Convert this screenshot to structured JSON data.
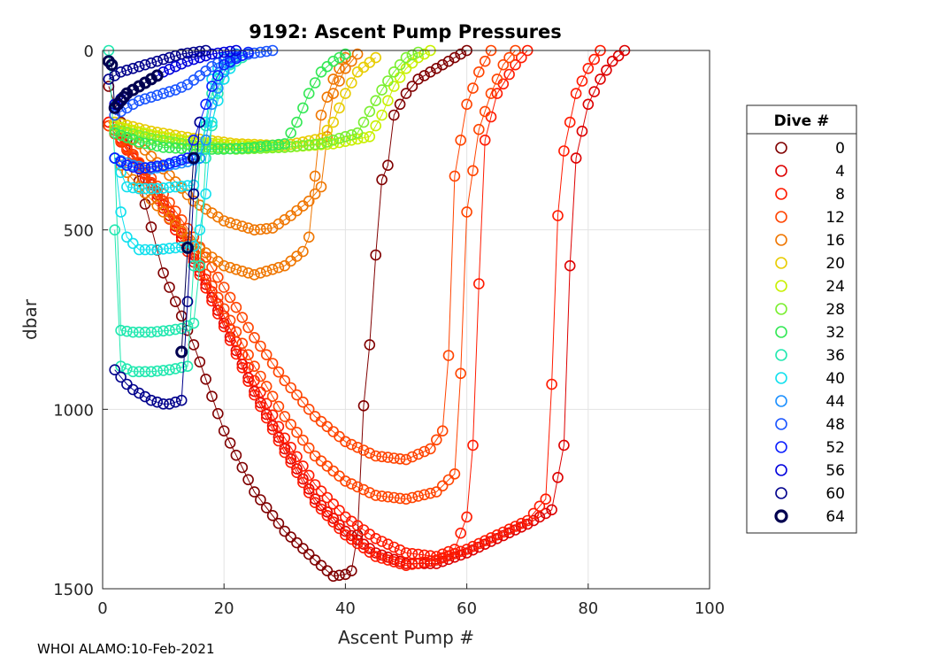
{
  "footer_text": "WHOI ALAMO:10-Feb-2021",
  "chart_data": {
    "type": "scatter",
    "title": "9192: Ascent Pump Pressures",
    "xlabel": "Ascent Pump #",
    "ylabel": "dbar",
    "xlim": [
      0,
      100
    ],
    "ylim": [
      0,
      1500
    ],
    "y_reversed": true,
    "grid": true,
    "xticks": [
      "0",
      "20",
      "40",
      "60",
      "80",
      "100"
    ],
    "yticks": [
      "0",
      "500",
      "1000",
      "1500"
    ],
    "legend": {
      "title": "Dive #",
      "placement": "outside-right",
      "entries": [
        {
          "label": "0",
          "color": "#800000"
        },
        {
          "label": "4",
          "color": "#dd0000"
        },
        {
          "label": "8",
          "color": "#ff1a00"
        },
        {
          "label": "12",
          "color": "#ff4400"
        },
        {
          "label": "16",
          "color": "#ef7600"
        },
        {
          "label": "20",
          "color": "#e8cc00"
        },
        {
          "label": "24",
          "color": "#c8f000"
        },
        {
          "label": "28",
          "color": "#7aef30"
        },
        {
          "label": "32",
          "color": "#33e855"
        },
        {
          "label": "36",
          "color": "#22e8b0"
        },
        {
          "label": "40",
          "color": "#11e0ee"
        },
        {
          "label": "44",
          "color": "#1c90ff"
        },
        {
          "label": "48",
          "color": "#1a55ff"
        },
        {
          "label": "52",
          "color": "#0a1eff"
        },
        {
          "label": "56",
          "color": "#0000dd"
        },
        {
          "label": "60",
          "color": "#00008c"
        },
        {
          "label": "64",
          "color": "#000050"
        }
      ]
    },
    "series": [
      {
        "color": "#800000",
        "x": [
          1,
          5,
          10,
          15,
          20,
          25,
          30,
          35,
          38,
          40,
          41,
          42,
          43,
          44,
          45,
          46,
          47,
          48,
          50,
          52,
          55,
          57,
          59,
          60
        ],
        "y": [
          100,
          300,
          620,
          820,
          1060,
          1230,
          1340,
          1420,
          1465,
          1460,
          1450,
          1350,
          990,
          820,
          570,
          360,
          320,
          180,
          120,
          80,
          50,
          30,
          10,
          0
        ]
      },
      {
        "color": "#dd0000",
        "x": [
          1,
          5,
          10,
          15,
          20,
          25,
          30,
          35,
          40,
          45,
          50,
          55,
          60,
          65,
          70,
          74,
          76,
          77,
          78,
          80,
          82,
          84,
          86
        ],
        "y": [
          200,
          290,
          430,
          580,
          760,
          950,
          1110,
          1250,
          1340,
          1400,
          1430,
          1430,
          1400,
          1360,
          1320,
          1280,
          1100,
          600,
          300,
          150,
          80,
          30,
          0
        ]
      },
      {
        "color": "#ff1a00",
        "x": [
          1,
          5,
          10,
          15,
          20,
          25,
          30,
          35,
          40,
          45,
          50,
          55,
          60,
          65,
          70,
          73,
          74,
          75,
          76,
          78,
          80,
          82
        ],
        "y": [
          210,
          300,
          440,
          590,
          770,
          960,
          1120,
          1260,
          1350,
          1410,
          1435,
          1420,
          1390,
          1350,
          1310,
          1250,
          930,
          460,
          280,
          120,
          50,
          0
        ]
      },
      {
        "color": "#ff1a00",
        "x": [
          1,
          5,
          10,
          15,
          20,
          25,
          30,
          35,
          40,
          45,
          50,
          55,
          58,
          60,
          61,
          62,
          63,
          65,
          68,
          70
        ],
        "y": [
          200,
          290,
          420,
          570,
          740,
          920,
          1080,
          1210,
          1300,
          1360,
          1400,
          1410,
          1390,
          1300,
          1100,
          650,
          250,
          120,
          40,
          0
        ]
      },
      {
        "color": "#ff4400",
        "x": [
          1,
          5,
          10,
          15,
          20,
          25,
          30,
          35,
          40,
          45,
          50,
          55,
          58,
          59,
          60,
          62,
          64,
          66,
          68
        ],
        "y": [
          210,
          295,
          420,
          560,
          720,
          880,
          1020,
          1130,
          1200,
          1240,
          1250,
          1230,
          1180,
          900,
          450,
          220,
          120,
          40,
          0
        ]
      },
      {
        "color": "#ff4400",
        "x": [
          1,
          5,
          10,
          15,
          20,
          25,
          30,
          35,
          40,
          45,
          50,
          54,
          56,
          57,
          58,
          60,
          62,
          64
        ],
        "y": [
          210,
          290,
          400,
          520,
          660,
          800,
          920,
          1020,
          1090,
          1130,
          1140,
          1110,
          1060,
          850,
          350,
          150,
          60,
          0
        ]
      },
      {
        "color": "#ef7600",
        "x": [
          2,
          6,
          10,
          15,
          20,
          25,
          30,
          33,
          34,
          35,
          36,
          38,
          40
        ],
        "y": [
          300,
          380,
          450,
          540,
          600,
          625,
          600,
          560,
          520,
          350,
          180,
          80,
          20
        ]
      },
      {
        "color": "#ef7600",
        "x": [
          2,
          6,
          10,
          15,
          20,
          25,
          28,
          31,
          34,
          36,
          37,
          38,
          40,
          42
        ],
        "y": [
          200,
          260,
          330,
          420,
          475,
          500,
          495,
          460,
          420,
          380,
          240,
          120,
          50,
          10
        ]
      },
      {
        "color": "#e8cc00",
        "x": [
          2,
          8,
          15,
          22,
          30,
          36,
          38,
          40,
          42,
          45
        ],
        "y": [
          200,
          225,
          245,
          260,
          265,
          245,
          200,
          120,
          60,
          20
        ]
      },
      {
        "color": "#c8f000",
        "x": [
          2,
          8,
          15,
          22,
          30,
          38,
          44,
          46,
          48,
          50,
          52,
          54
        ],
        "y": [
          210,
          235,
          255,
          265,
          270,
          260,
          240,
          180,
          100,
          50,
          20,
          0
        ]
      },
      {
        "color": "#7aef30",
        "x": [
          2,
          8,
          15,
          22,
          30,
          36,
          42,
          44,
          46,
          48,
          50,
          52
        ],
        "y": [
          220,
          245,
          265,
          275,
          270,
          260,
          230,
          170,
          110,
          60,
          20,
          5
        ]
      },
      {
        "color": "#33e855",
        "x": [
          2,
          6,
          10,
          15,
          20,
          25,
          30,
          32,
          34,
          36,
          38,
          40
        ],
        "y": [
          230,
          255,
          270,
          275,
          275,
          270,
          260,
          200,
          120,
          60,
          30,
          10
        ]
      },
      {
        "color": "#22e8b0",
        "x": [
          1,
          2,
          3,
          5,
          8,
          11,
          13,
          15,
          16,
          17,
          19,
          21,
          24
        ],
        "y": [
          0,
          300,
          780,
          785,
          785,
          780,
          775,
          760,
          600,
          300,
          120,
          40,
          10
        ]
      },
      {
        "color": "#22e8b0",
        "x": [
          2,
          3,
          5,
          8,
          11,
          14,
          15,
          16,
          18,
          20,
          22
        ],
        "y": [
          500,
          880,
          895,
          895,
          890,
          880,
          600,
          300,
          120,
          40,
          10
        ]
      },
      {
        "color": "#11e0ee",
        "x": [
          2,
          3,
          4,
          6,
          9,
          12,
          15,
          16,
          17,
          18,
          20,
          22
        ],
        "y": [
          300,
          450,
          520,
          555,
          555,
          550,
          545,
          500,
          400,
          200,
          80,
          20
        ]
      },
      {
        "color": "#11e0ee",
        "x": [
          2,
          4,
          6,
          9,
          12,
          15,
          16,
          17,
          18,
          20
        ],
        "y": [
          300,
          380,
          385,
          385,
          380,
          375,
          300,
          200,
          80,
          20
        ]
      },
      {
        "color": "#1c90ff",
        "x": [
          2,
          5,
          8,
          11,
          14,
          16,
          17,
          18,
          20,
          22
        ],
        "y": [
          300,
          320,
          330,
          320,
          310,
          300,
          250,
          150,
          60,
          10
        ]
      },
      {
        "color": "#1a55ff",
        "x": [
          2,
          4,
          6,
          8,
          10,
          12,
          14,
          16,
          18,
          20,
          24,
          28
        ],
        "y": [
          180,
          160,
          140,
          130,
          120,
          110,
          95,
          70,
          45,
          25,
          10,
          0
        ]
      },
      {
        "color": "#0a1eff",
        "x": [
          2,
          4,
          6,
          8,
          10,
          12,
          14,
          16,
          18,
          20,
          24
        ],
        "y": [
          300,
          320,
          330,
          325,
          320,
          310,
          300,
          200,
          100,
          40,
          5
        ]
      },
      {
        "color": "#0000dd",
        "x": [
          2,
          4,
          6,
          8,
          10,
          12,
          14,
          16,
          18,
          20,
          22
        ],
        "y": [
          150,
          120,
          100,
          80,
          60,
          45,
          30,
          20,
          10,
          5,
          0
        ]
      },
      {
        "color": "#00008c",
        "x": [
          2,
          3,
          4,
          5,
          6,
          7,
          8,
          9,
          10,
          11,
          12,
          13,
          14,
          15,
          16
        ],
        "y": [
          890,
          910,
          930,
          945,
          955,
          965,
          975,
          980,
          985,
          985,
          980,
          975,
          700,
          400,
          200
        ]
      },
      {
        "color": "#00008c",
        "x": [
          1,
          3,
          5,
          7,
          9,
          11,
          13,
          15,
          17
        ],
        "y": [
          80,
          60,
          50,
          40,
          30,
          20,
          10,
          5,
          0
        ]
      },
      {
        "color": "#000050",
        "thick": true,
        "x": [
          1,
          1.5,
          2,
          2.5,
          3,
          3.5,
          4,
          5,
          6,
          7,
          8,
          9
        ],
        "y": [
          30,
          40,
          160,
          150,
          140,
          130,
          120,
          110,
          100,
          90,
          80,
          70
        ]
      },
      {
        "color": "#000050",
        "thick": true,
        "x": [
          13,
          14,
          15
        ],
        "y": [
          840,
          550,
          300
        ]
      }
    ]
  }
}
